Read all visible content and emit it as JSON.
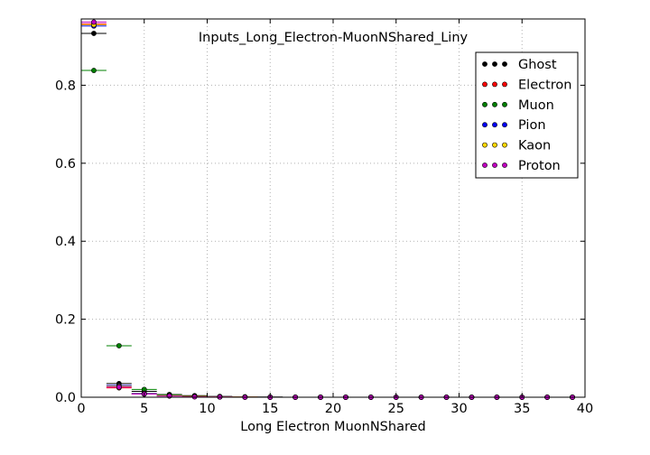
{
  "chart_data": {
    "type": "scatter",
    "title": "Inputs_Long_Electron-MuonNShared_Liny",
    "xlabel": "Long Electron MuonNShared",
    "ylabel": "",
    "xlim": [
      0,
      40
    ],
    "ylim": [
      0.0,
      0.97
    ],
    "xticks": [
      0,
      5,
      10,
      15,
      20,
      25,
      30,
      35,
      40
    ],
    "yticks": [
      0.0,
      0.2,
      0.4,
      0.6,
      0.8
    ],
    "ytick_labels": [
      "0.0",
      "0.2",
      "0.4",
      "0.6",
      "0.8"
    ],
    "grid": true,
    "legend_position": "top-right",
    "x_bin_halfwidth": 1,
    "x": [
      1,
      3,
      5,
      7,
      9,
      11,
      13,
      15,
      17,
      19,
      21,
      23,
      25,
      27,
      29,
      31,
      33,
      35,
      37,
      39
    ],
    "series": [
      {
        "name": "Ghost",
        "color": "#000000",
        "values": [
          0.933,
          0.035,
          0.015,
          0.007,
          0.004,
          0.002,
          0.001,
          0.0005,
          0,
          0,
          0,
          0,
          0,
          0,
          0,
          0,
          0,
          0,
          0,
          0
        ]
      },
      {
        "name": "Electron",
        "color": "#ff0000",
        "values": [
          0.957,
          0.024,
          0.008,
          0.004,
          0.002,
          0.001,
          0.0005,
          0,
          0,
          0,
          0,
          0,
          0,
          0,
          0,
          0,
          0,
          0,
          0,
          0
        ]
      },
      {
        "name": "Muon",
        "color": "#008000",
        "values": [
          0.838,
          0.132,
          0.02,
          0.006,
          0.002,
          0.001,
          0,
          0,
          0,
          0,
          0,
          0,
          0,
          0,
          0,
          0,
          0,
          0,
          0,
          0
        ]
      },
      {
        "name": "Pion",
        "color": "#0000ff",
        "values": [
          0.952,
          0.03,
          0.01,
          0.004,
          0.002,
          0.001,
          0.0005,
          0,
          0,
          0,
          0,
          0,
          0,
          0,
          0,
          0,
          0,
          0,
          0,
          0
        ]
      },
      {
        "name": "Kaon",
        "color": "#ffd700",
        "values": [
          0.955,
          0.028,
          0.009,
          0.004,
          0.002,
          0.001,
          0.0005,
          0,
          0,
          0,
          0,
          0,
          0,
          0,
          0,
          0,
          0,
          0,
          0,
          0
        ]
      },
      {
        "name": "Proton",
        "color": "#bf00bf",
        "values": [
          0.962,
          0.026,
          0.008,
          0.003,
          0.001,
          0.0005,
          0,
          0,
          0,
          0,
          0,
          0,
          0,
          0,
          0,
          0,
          0,
          0,
          0,
          0
        ]
      }
    ]
  }
}
